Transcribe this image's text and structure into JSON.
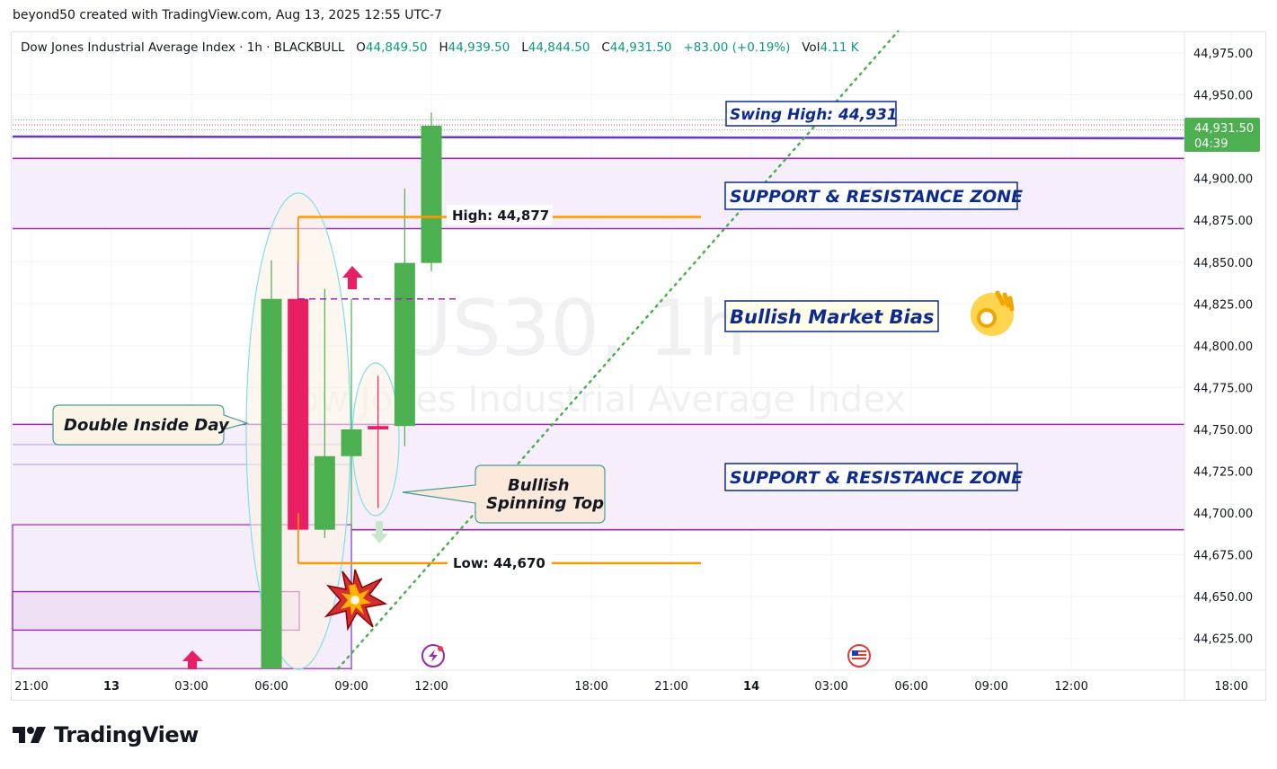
{
  "header": {
    "author_line": "beyond50 created with TradingView.com, Aug 13, 2025 12:55 UTC-7"
  },
  "legend": {
    "symbol": "Dow Jones Industrial Average Index · 1h · BLACKBULL",
    "o_label": "O",
    "o_value": "44,849.50",
    "h_label": "H",
    "h_value": "44,939.50",
    "l_label": "L",
    "l_value": "44,844.50",
    "c_label": "C",
    "c_value": "44,931.50",
    "change": "+83.00 (+0.19%)",
    "vol_label": "Vol",
    "vol_value": "4.11 K"
  },
  "watermark": {
    "symbol": "US30, 1h",
    "name": "Dow Jones Industrial Average Index"
  },
  "price_tag": {
    "price": "44,931.50",
    "countdown": "04:39"
  },
  "colors": {
    "up": "#4caf50",
    "down": "#e91e63",
    "zone": "#9c27b0",
    "level": "#ff9800",
    "trend": "#4caf50",
    "label_border": "#0d2b8e",
    "label_text": "#0d2b8e",
    "current": "#673ab7"
  },
  "annotations": {
    "swing_high": "Swing High: 44,931",
    "zone_upper": "SUPPORT & RESISTANCE ZONE",
    "zone_lower": "SUPPORT & RESISTANCE ZONE",
    "bias": "Bullish Market Bias",
    "high_label": "High: 44,877",
    "low_label": "Low: 44,670",
    "double_inside": "Double Inside Day",
    "spinning_line1": "Bullish",
    "spinning_line2": "Spinning Top"
  },
  "brand": {
    "name": "TradingView"
  },
  "chart_data": {
    "type": "candlestick",
    "title": "Dow Jones Industrial Average Index · 1h · BLACKBULL",
    "y_ticks": [
      "44,625.00",
      "44,650.00",
      "44,675.00",
      "44,700.00",
      "44,725.00",
      "44,750.00",
      "44,775.00",
      "44,800.00",
      "44,825.00",
      "44,850.00",
      "44,875.00",
      "44,900.00",
      "44,925.00",
      "44,950.00",
      "44,975.00"
    ],
    "y_tick_values": [
      44625,
      44650,
      44675,
      44700,
      44725,
      44750,
      44775,
      44800,
      44825,
      44850,
      44875,
      44900,
      44925,
      44950,
      44975
    ],
    "ylim": [
      44607,
      44988
    ],
    "x_ticks": [
      {
        "label": "21:00",
        "h": -3
      },
      {
        "label": "13",
        "h": 0
      },
      {
        "label": "03:00",
        "h": 3
      },
      {
        "label": "06:00",
        "h": 6
      },
      {
        "label": "09:00",
        "h": 9
      },
      {
        "label": "12:00",
        "h": 12
      },
      {
        "label": "18:00",
        "h": 18
      },
      {
        "label": "21:00",
        "h": 21
      },
      {
        "label": "14",
        "h": 24
      },
      {
        "label": "03:00",
        "h": 27
      },
      {
        "label": "06:00",
        "h": 30
      },
      {
        "label": "09:00",
        "h": 33
      },
      {
        "label": "12:00",
        "h": 36
      },
      {
        "label": "18:00",
        "h": 42
      }
    ],
    "candles": [
      {
        "h": 6,
        "open": 44607.0,
        "high": 44851.0,
        "low": 44607.0,
        "close": 44828.0
      },
      {
        "h": 7,
        "open": 44828.0,
        "high": 44877.0,
        "low": 44670.0,
        "close": 44690.0
      },
      {
        "h": 8,
        "open": 44690.0,
        "high": 44834.0,
        "low": 44685.0,
        "close": 44734.0
      },
      {
        "h": 9,
        "open": 44734.0,
        "high": 44828.0,
        "low": 44690.0,
        "close": 44750.0
      },
      {
        "h": 10,
        "open": 44752.0,
        "high": 44782.0,
        "low": 44703.0,
        "close": 44750.0
      },
      {
        "h": 11,
        "open": 44752.0,
        "high": 44894.0,
        "low": 44740.0,
        "close": 44849.5
      },
      {
        "h": 12,
        "open": 44849.5,
        "high": 44939.5,
        "low": 44844.5,
        "close": 44931.5
      }
    ],
    "levels": {
      "swing_high": 44931,
      "current": 44931.5,
      "zone_upper": [
        44870,
        44912
      ],
      "zone_lower": [
        44690,
        44753
      ],
      "high": 44877,
      "low": 44670,
      "dashed": 44828
    },
    "trendline": {
      "from": {
        "h": 8.5,
        "price": 44607
      },
      "to": {
        "h": 29.5,
        "price": 44988
      }
    },
    "grid": true
  }
}
